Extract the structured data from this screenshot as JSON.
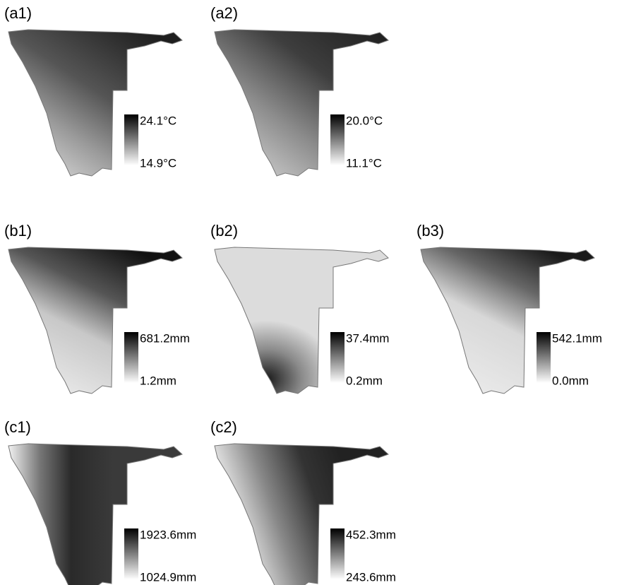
{
  "panels": [
    {
      "label": "(a1)",
      "max": "24.1°C",
      "min": "14.9°C"
    },
    {
      "label": "(a2)",
      "max": "20.0°C",
      "min": "11.1°C"
    },
    {
      "label": "(b1)",
      "max": "681.2mm",
      "min": "1.2mm"
    },
    {
      "label": "(b2)",
      "max": "37.4mm",
      "min": "0.2mm"
    },
    {
      "label": "(b3)",
      "max": "542.1mm",
      "min": "0.0mm"
    },
    {
      "label": "(c1)",
      "max": "1923.6mm",
      "min": "1024.9mm"
    },
    {
      "label": "(c2)",
      "max": "452.3mm",
      "min": "243.6mm"
    }
  ]
}
